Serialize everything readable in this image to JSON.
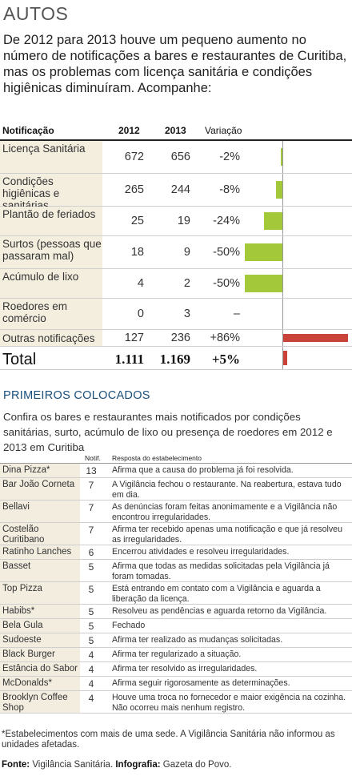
{
  "section_title": "AUTOS",
  "intro": "De 2012 para 2013 houve um pequeno aumento no número de notificações a bares e restaurantes de Curitiba, mas os problemas com licença sanitária e condições higiênicas diminuíram. Acompanhe:",
  "table1": {
    "headers": {
      "notificacao": "Notificação",
      "y2012": "2012",
      "y2013": "2013",
      "variacao": "Variação"
    },
    "rows": [
      {
        "label": "Licença Sanitária",
        "v2012": "672",
        "v2013": "656",
        "variacao": "-2%",
        "pct": -2
      },
      {
        "label": "Condições higiênicas e sanitárias",
        "v2012": "265",
        "v2013": "244",
        "variacao": "-8%",
        "pct": -8
      },
      {
        "label": "Plantão de feriados",
        "v2012": "25",
        "v2013": "19",
        "variacao": "-24%",
        "pct": -24
      },
      {
        "label": "Surtos (pessoas que passaram mal)",
        "v2012": "18",
        "v2013": "9",
        "variacao": "-50%",
        "pct": -50
      },
      {
        "label": "Acúmulo de lixo",
        "v2012": "4",
        "v2013": "2",
        "variacao": "-50%",
        "pct": -50
      },
      {
        "label": "Roedores em comércio",
        "v2012": "0",
        "v2013": "3",
        "variacao": "–",
        "pct": 0
      }
    ],
    "outras": {
      "label": "Outras notificações",
      "v2012": "127",
      "v2013": "236",
      "variacao": "+86%",
      "pct": 86
    },
    "total": {
      "label": "Total",
      "v2012": "1.111",
      "v2013": "1.169",
      "variacao": "+5%",
      "pct": 5
    }
  },
  "section2_title": "PRIMEIROS COLOCADOS",
  "intro2": "Confira os bares e restaurantes mais notificados por condições sanitárias, surto, acúmulo de lixo ou presença de roedores em 2012 e 2013 em Curitiba",
  "table2": {
    "headers": {
      "notif": "Notif.",
      "resposta": "Resposta do estabelecimento"
    },
    "rows": [
      {
        "name": "Dina Pizza*",
        "notif": "13",
        "resp": "Afirma que a causa do problema já foi resolvida."
      },
      {
        "name": "Bar João Corneta",
        "notif": "7",
        "resp": "A Vigilância fechou o restaurante. Na reabertura, estava tudo em dia."
      },
      {
        "name": "Bellavi",
        "notif": "7",
        "resp": "As denúncias foram feitas anonimamente e a Vigilância não encontrou irregularidades."
      },
      {
        "name": "Costelão Curitibano",
        "notif": "7",
        "resp": "Afirma ter recebido apenas uma notificação e que já resolveu as irregularidades."
      },
      {
        "name": "Ratinho Lanches",
        "notif": "6",
        "resp": "Encerrou atividades e resolveu irregularidades."
      },
      {
        "name": "Basset",
        "notif": "5",
        "resp": "Afirma que todas as medidas solicitadas pela Vigilância já foram tomadas."
      },
      {
        "name": "Top Pizza",
        "notif": "5",
        "resp": "Está entrando em contato com a Vigilância e aguarda a liberação da licença."
      },
      {
        "name": "Habibs*",
        "notif": "5",
        "resp": "Resolveu as pendências e aguarda retorno da Vigilância."
      },
      {
        "name": "Bela Gula",
        "notif": "5",
        "resp": "Fechado"
      },
      {
        "name": "Sudoeste",
        "notif": "5",
        "resp": "Afirma ter realizado as mudanças solicitadas."
      },
      {
        "name": "Black Burger",
        "notif": "4",
        "resp": "Afirma ter regularizado a situação."
      },
      {
        "name": "Estância do Sabor",
        "notif": "4",
        "resp": "Afirma ter resolvido as irregularidades."
      },
      {
        "name": "McDonalds*",
        "notif": "4",
        "resp": "Afirma seguir rigorosamente as determinações."
      },
      {
        "name": "Brooklyn Coffee Shop",
        "notif": "4",
        "resp": "Houve uma troca no fornecedor e maior exigência na cozinha. Não ocorreu mais nenhum registro."
      }
    ]
  },
  "footnote": "*Estabelecimentos com mais de uma sede. A Vigilância Sanitária não informou as unidades afetadas.",
  "source": {
    "fonte_label": "Fonte:",
    "fonte": "Vigilância Sanitária.",
    "info_label": "Infografia:",
    "info": "Gazeta do Povo."
  },
  "colors": {
    "negative_bar": "#a3c93a",
    "positive_bar": "#c9433b",
    "label_bg": "#f4eedf"
  }
}
